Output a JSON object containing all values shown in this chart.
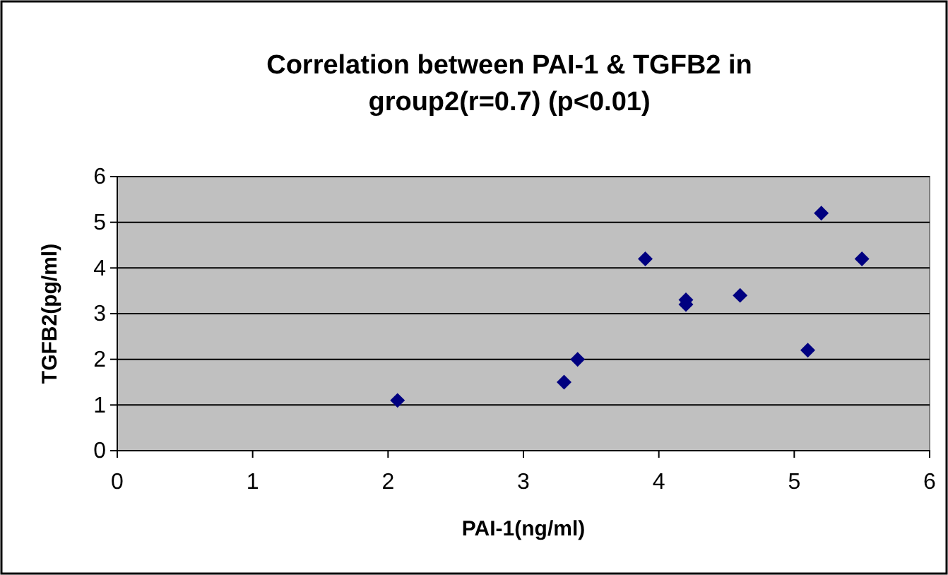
{
  "chart_data": {
    "type": "scatter",
    "title": "Correlation between PAI-1 & TGFB2 in group2(r=0.7) (p<0.01)",
    "xlabel": "PAI-1(ng/ml)",
    "ylabel": "TGFB2(pg/ml)",
    "x": [
      2.07,
      3.3,
      3.4,
      3.9,
      4.2,
      4.2,
      4.6,
      5.1,
      5.2,
      5.5
    ],
    "series": [
      {
        "color": "#000080",
        "values": [
          1.1,
          1.5,
          2.0,
          4.2,
          3.3,
          3.2,
          3.4,
          2.2,
          5.2,
          4.2
        ]
      }
    ],
    "xlim": [
      0,
      6
    ],
    "xticks": [
      0,
      1,
      2,
      3,
      4,
      5,
      6
    ],
    "ylim": [
      0,
      6
    ],
    "yticks": [
      0,
      1,
      2,
      3,
      4,
      5,
      6
    ],
    "grid": "y",
    "marker": "diamond"
  }
}
